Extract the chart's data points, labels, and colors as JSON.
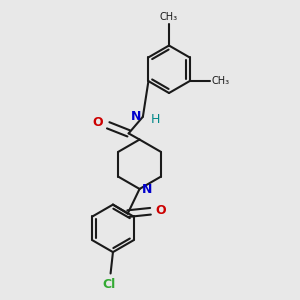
{
  "bg_color": "#e8e8e8",
  "bond_color": "#1a1a1a",
  "N_color": "#0000cc",
  "O_color": "#cc0000",
  "Cl_color": "#33aa33",
  "H_color": "#008888",
  "lw": 1.5,
  "xlim": [
    -0.5,
    3.5
  ],
  "ylim": [
    -3.0,
    3.2
  ]
}
